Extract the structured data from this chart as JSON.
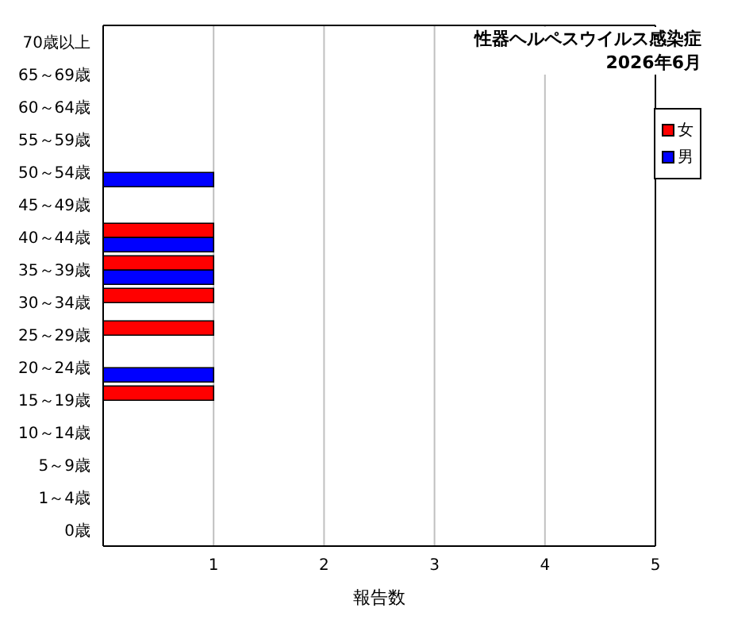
{
  "chart_data": {
    "type": "bar",
    "orientation": "horizontal",
    "title": "性器ヘルペスウイルス感染症",
    "subtitle": "2026年6月",
    "xlabel": "報告数",
    "categories": [
      "70歳以上",
      "65～69歳",
      "60～64歳",
      "55～59歳",
      "50～54歳",
      "45～49歳",
      "40～44歳",
      "35～39歳",
      "30～34歳",
      "25～29歳",
      "20～24歳",
      "15～19歳",
      "10～14歳",
      "5～9歳",
      "1～4歳",
      "0歳"
    ],
    "series": [
      {
        "name": "女",
        "color": "#ff0000",
        "values": [
          0,
          0,
          0,
          0,
          0,
          0,
          1,
          1,
          1,
          1,
          0,
          1,
          0,
          0,
          0,
          0
        ]
      },
      {
        "name": "男",
        "color": "#0000ff",
        "values": [
          0,
          0,
          0,
          0,
          1,
          0,
          1,
          1,
          0,
          0,
          1,
          0,
          0,
          0,
          0,
          0
        ]
      }
    ],
    "xlim": [
      0,
      5
    ],
    "xticks": [
      {
        "value": 0,
        "label": null
      },
      1,
      2,
      3,
      4,
      5
    ],
    "grid": "x",
    "legend": "top right"
  }
}
